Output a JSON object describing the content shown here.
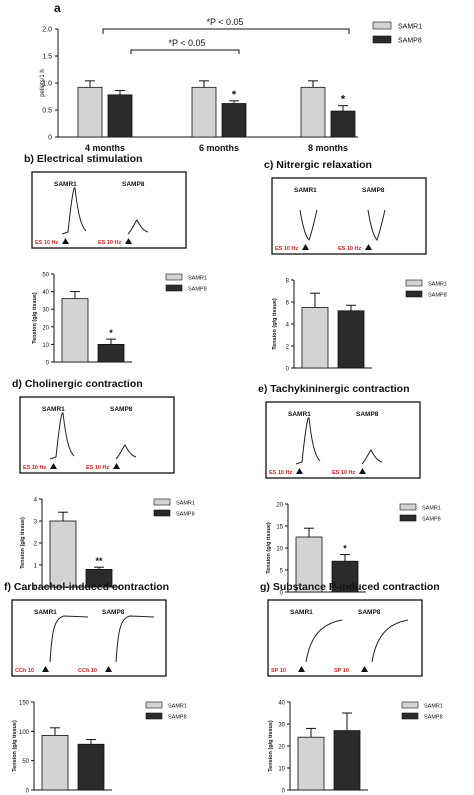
{
  "colors": {
    "samr1": "#d3d3d3",
    "samp8": "#2b2b2b",
    "marker_red": "#e0201a"
  },
  "panel_a": {
    "letter": "a",
    "ylabel": "pellets/1 h",
    "yticks": [
      "0",
      "0.5",
      "1.0",
      "1.5",
      "2.0"
    ],
    "brackets": [
      "*P < 0.05",
      "*P < 0.05"
    ],
    "chart_data": {
      "type": "bar",
      "categories": [
        "4 months",
        "6 months",
        "8 months"
      ],
      "series": [
        {
          "name": "SAMR1",
          "values": [
            0.92,
            0.92,
            0.92
          ],
          "errors": [
            0.12,
            0.12,
            0.12
          ]
        },
        {
          "name": "SAMP8",
          "values": [
            0.78,
            0.62,
            0.48
          ],
          "errors": [
            0.08,
            0.05,
            0.1
          ]
        }
      ],
      "ylabel": "pellets/1 h",
      "ylim": [
        0,
        2.0
      ],
      "significance": [
        "",
        "*",
        "*"
      ],
      "legend": "top-right"
    }
  },
  "panels": [
    {
      "id": "b",
      "title": "b) Electrical stimulation",
      "trace_labels": [
        "SAMR1",
        "SAMP8"
      ],
      "stim_labels": [
        "ES 10 Hz",
        "ES 10 Hz"
      ],
      "ylabel": "Tension (g/g tissue)",
      "yticks": [
        "0",
        "10",
        "20",
        "30",
        "40",
        "50"
      ],
      "legend": [
        "SAMR1",
        "SAMP8"
      ],
      "chart_data": {
        "type": "bar",
        "categories": [
          "SAMR1",
          "SAMP8"
        ],
        "values": [
          36,
          10
        ],
        "errors": [
          4,
          3
        ],
        "significance": [
          "",
          "*"
        ],
        "ylim": [
          0,
          50
        ]
      }
    },
    {
      "id": "c",
      "title": "c) Nitrergic relaxation",
      "trace_labels": [
        "SAMR1",
        "SAMP8"
      ],
      "stim_labels": [
        "ES 10 Hz",
        "ES 10 Hz"
      ],
      "ylabel": "Tension (g/g tissue)",
      "yticks": [
        "0",
        "2",
        "4",
        "6",
        "8"
      ],
      "legend": [
        "SAMR1",
        "SAMP8"
      ],
      "chart_data": {
        "type": "bar",
        "categories": [
          "SAMR1",
          "SAMP8"
        ],
        "values": [
          5.5,
          5.2
        ],
        "errors": [
          1.3,
          0.5
        ],
        "significance": [
          "",
          ""
        ],
        "ylim": [
          0,
          8
        ]
      }
    },
    {
      "id": "d",
      "title": "d) Cholinergic contraction",
      "trace_labels": [
        "SAMR1",
        "SAMP8"
      ],
      "stim_labels": [
        "ES 10 Hz",
        "ES 10 Hz"
      ],
      "ylabel": "Tension (g/g tissue)",
      "yticks": [
        "0",
        "1",
        "2",
        "3",
        "4"
      ],
      "legend": [
        "SAMR1",
        "SAMP8"
      ],
      "chart_data": {
        "type": "bar",
        "categories": [
          "SAMR1",
          "SAMP8"
        ],
        "values": [
          3.0,
          0.8
        ],
        "errors": [
          0.4,
          0.1
        ],
        "significance": [
          "",
          "**"
        ],
        "ylim": [
          0,
          4
        ]
      }
    },
    {
      "id": "e",
      "title": "e) Tachykininergic contraction",
      "trace_labels": [
        "SAMR1",
        "SAMP8"
      ],
      "stim_labels": [
        "ES 10 Hz",
        "ES 10 Hz"
      ],
      "ylabel": "Tension (g/g tissue)",
      "yticks": [
        "0",
        "5",
        "10",
        "15",
        "20"
      ],
      "legend": [
        "SAMR1",
        "SAMP8"
      ],
      "chart_data": {
        "type": "bar",
        "categories": [
          "SAMR1",
          "SAMP8"
        ],
        "values": [
          12.5,
          7.0
        ],
        "errors": [
          2.0,
          1.5
        ],
        "significance": [
          "",
          "*"
        ],
        "ylim": [
          0,
          20
        ]
      }
    },
    {
      "id": "f",
      "title": "f) Carbachol-induced contraction",
      "trace_labels": [
        "SAMR1",
        "SAMP8"
      ],
      "stim_labels": [
        "CCh 10",
        "CCh 10"
      ],
      "ylabel": "Tension (g/g tissue)",
      "yticks": [
        "0",
        "50",
        "100",
        "150"
      ],
      "legend": [
        "SAMR1",
        "SAMP8"
      ],
      "chart_data": {
        "type": "bar",
        "categories": [
          "SAMR1",
          "SAMP8"
        ],
        "values": [
          93,
          78
        ],
        "errors": [
          13,
          8
        ],
        "significance": [
          "",
          ""
        ],
        "ylim": [
          0,
          150
        ]
      }
    },
    {
      "id": "g",
      "title": "g) Substance P-induced contraction",
      "trace_labels": [
        "SAMR1",
        "SAMP8"
      ],
      "stim_labels": [
        "SP 10",
        "SP 10"
      ],
      "ylabel": "Tension (g/g tissue)",
      "yticks": [
        "0",
        "10",
        "20",
        "30",
        "40"
      ],
      "legend": [
        "SAMR1",
        "SAMP8"
      ],
      "chart_data": {
        "type": "bar",
        "categories": [
          "SAMR1",
          "SAMP8"
        ],
        "values": [
          24,
          27
        ],
        "errors": [
          4,
          8
        ],
        "significance": [
          "",
          ""
        ],
        "ylim": [
          0,
          40
        ]
      }
    }
  ]
}
